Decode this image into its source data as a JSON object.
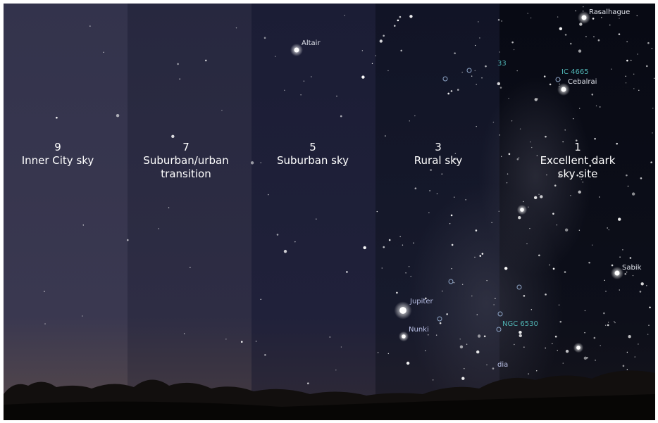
{
  "panels": [
    {
      "level": 9,
      "label": [
        "Inner City sky"
      ]
    },
    {
      "level": 7,
      "label": [
        "Suburban/urban",
        "transition"
      ]
    },
    {
      "level": 5,
      "label": [
        "Suburban sky"
      ]
    },
    {
      "level": 3,
      "label": [
        "Rural sky"
      ]
    },
    {
      "level": 1,
      "label": [
        "Excellent dark",
        "sky site"
      ]
    }
  ],
  "sky_labels": [
    {
      "text": "Altair"
    },
    {
      "text": "Rasalhague"
    },
    {
      "text": "33"
    },
    {
      "text": "IC 4665"
    },
    {
      "text": "Cebalrai"
    },
    {
      "text": "Sabik"
    },
    {
      "text": "Jupiter"
    },
    {
      "text": "Nunki"
    },
    {
      "text": "NGC 6530"
    },
    {
      "text": "dia"
    }
  ]
}
